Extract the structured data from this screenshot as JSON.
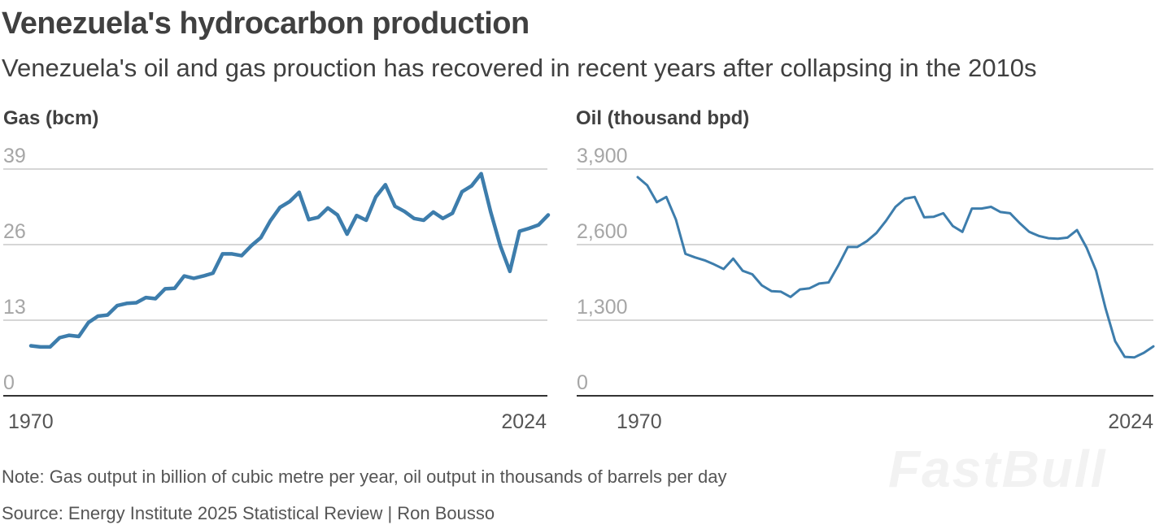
{
  "header": {
    "title": "Venezuela's hydrocarbon production",
    "subtitle": "Venezuela's oil and gas prouction has recovered in recent years after collapsing in the 2010s"
  },
  "footer": {
    "note": "Note: Gas output in billion of cubic metre per year, oil output in thousands of barrels per day",
    "source": "Source: Energy Institute 2025 Statistical Review | Ron Bousso"
  },
  "watermark": "FastBull",
  "colors": {
    "line": "#3d7dac",
    "grid": "#c8c8c8",
    "axis": "#333333",
    "tick": "#a6a6a6",
    "text": "#404040"
  },
  "chart_data": [
    {
      "type": "line",
      "title": "Gas (bcm)",
      "xlabel": "",
      "ylabel": "",
      "xlim": [
        1970,
        2024
      ],
      "ylim": [
        0,
        39
      ],
      "yticks": [
        0,
        13,
        26,
        39
      ],
      "ytick_labels": [
        "0",
        "13",
        "26",
        "39"
      ],
      "xtick_labels": [
        "1970",
        "2024"
      ],
      "grid": true,
      "series": [
        {
          "name": "Gas",
          "x": [
            1970,
            1971,
            1972,
            1973,
            1974,
            1975,
            1976,
            1977,
            1978,
            1979,
            1980,
            1981,
            1982,
            1983,
            1984,
            1985,
            1986,
            1987,
            1988,
            1989,
            1990,
            1991,
            1992,
            1993,
            1994,
            1995,
            1996,
            1997,
            1998,
            1999,
            2000,
            2001,
            2002,
            2003,
            2004,
            2005,
            2006,
            2007,
            2008,
            2009,
            2010,
            2011,
            2012,
            2013,
            2014,
            2015,
            2016,
            2017,
            2018,
            2019,
            2020,
            2021,
            2022,
            2023,
            2024
          ],
          "values": [
            8.6,
            8.4,
            8.4,
            10,
            10.4,
            10.2,
            12.6,
            13.7,
            13.9,
            15.5,
            15.9,
            16,
            16.9,
            16.7,
            18.4,
            18.5,
            20.6,
            20.2,
            20.6,
            21.1,
            24.4,
            24.4,
            24.1,
            25.8,
            27.2,
            30.1,
            32.4,
            33.4,
            35,
            30.3,
            30.7,
            32.3,
            31.1,
            27.8,
            31,
            30.2,
            34.2,
            36.3,
            32.6,
            31.7,
            30.5,
            30.2,
            31.6,
            30.5,
            31.4,
            35.1,
            36.1,
            38.2,
            31.6,
            25.8,
            21.4,
            28.3,
            28.8,
            29.4,
            31.1
          ]
        }
      ]
    },
    {
      "type": "line",
      "title": "Oil (thousand bpd)",
      "xlabel": "",
      "ylabel": "",
      "xlim": [
        1970,
        2024
      ],
      "ylim": [
        0,
        3900
      ],
      "yticks": [
        0,
        1300,
        2600,
        3900
      ],
      "ytick_labels": [
        "0",
        "1,300",
        "2,600",
        "3,900"
      ],
      "xtick_labels": [
        "1970",
        "2024"
      ],
      "grid": true,
      "series": [
        {
          "name": "Oil",
          "x": [
            1970,
            1971,
            1972,
            1973,
            1974,
            1975,
            1976,
            1977,
            1978,
            1979,
            1980,
            1981,
            1982,
            1983,
            1984,
            1985,
            1986,
            1987,
            1988,
            1989,
            1990,
            1991,
            1992,
            1993,
            1994,
            1995,
            1996,
            1997,
            1998,
            1999,
            2000,
            2001,
            2002,
            2003,
            2004,
            2005,
            2006,
            2007,
            2008,
            2009,
            2010,
            2011,
            2012,
            2013,
            2014,
            2015,
            2016,
            2017,
            2018,
            2019,
            2020,
            2021,
            2022,
            2023,
            2024
          ],
          "values": [
            3760,
            3620,
            3330,
            3420,
            3030,
            2440,
            2380,
            2330,
            2260,
            2180,
            2360,
            2150,
            2090,
            1900,
            1800,
            1790,
            1700,
            1830,
            1850,
            1930,
            1950,
            2240,
            2560,
            2560,
            2660,
            2800,
            3010,
            3250,
            3390,
            3420,
            3070,
            3080,
            3140,
            2920,
            2820,
            3220,
            3220,
            3250,
            3160,
            3140,
            2970,
            2820,
            2750,
            2710,
            2700,
            2720,
            2850,
            2550,
            2150,
            1500,
            940,
            670,
            660,
            740,
            850
          ]
        }
      ]
    }
  ]
}
